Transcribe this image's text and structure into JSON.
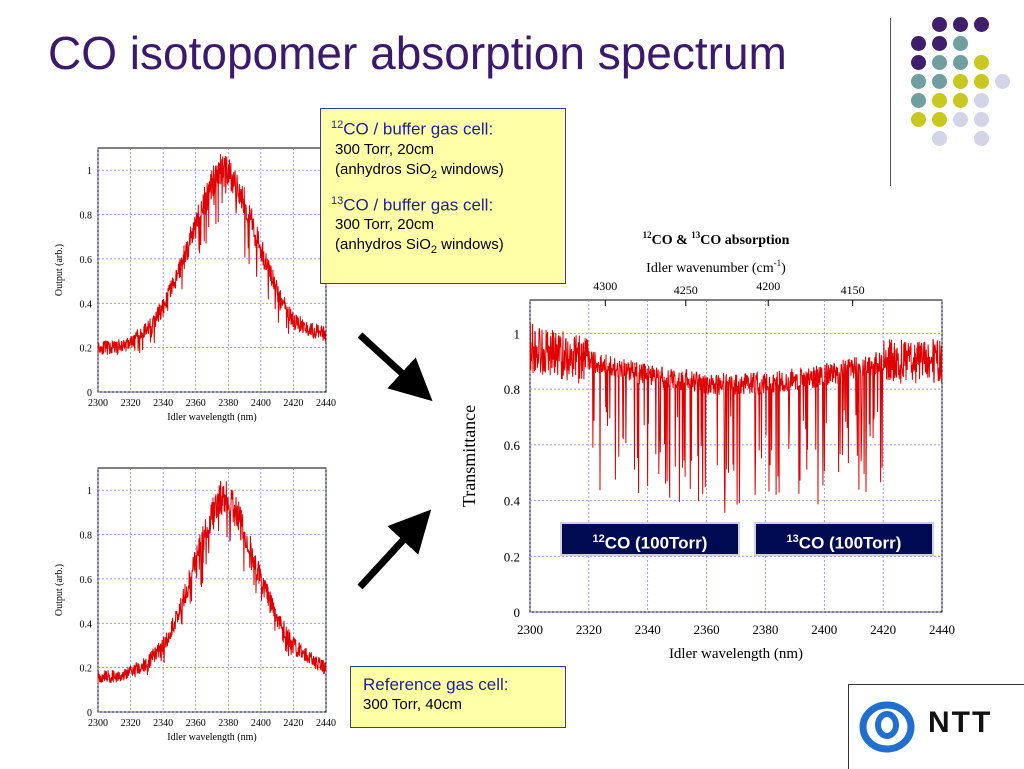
{
  "slide": {
    "title": "CO isotopomer absorption spectrum",
    "logo_text": "NTT",
    "logo_icon": "ntt-swirl-logo"
  },
  "callouts": {
    "top": {
      "line1_sup": "12",
      "line1": "CO / buffer gas cell:",
      "line2": "300 Torr, 20cm",
      "line3_a": "(anhydros SiO",
      "line3_sub": "2",
      "line3_b": " windows)",
      "line4_sup": "13",
      "line4": "CO / buffer gas cell:",
      "line5": "300 Torr, 20cm",
      "line6_a": "(anhydros SiO",
      "line6_sub": "2",
      "line6_b": " windows)"
    },
    "bottom": {
      "line1": "Reference gas cell:",
      "line2": "300 Torr, 40cm"
    }
  },
  "badges": {
    "b1_sup": "12",
    "b1": "CO (100Torr)",
    "b2_sup": "13",
    "b2": "CO (100Torr)"
  },
  "colors": {
    "title": "#3b1a6e",
    "data_line": "#e00000",
    "dot_purple": "#3f1f6b",
    "dot_teal": "#6f9f9f",
    "dot_yellow": "#c8c820",
    "dot_lavender": "#d4d4e8"
  },
  "chart_data": [
    {
      "type": "line",
      "id": "top-left",
      "title": "",
      "xlabel": "Idler wavelength (nm)",
      "ylabel": "Output (arb.)",
      "xlim": [
        2300,
        2440
      ],
      "ylim": [
        0,
        1.1
      ],
      "x_ticks": [
        2300,
        2320,
        2340,
        2360,
        2380,
        2400,
        2420,
        2440
      ],
      "y_ticks": [
        0,
        0.2,
        0.4,
        0.6,
        0.8,
        1
      ],
      "y_tick_labels": [
        "0",
        "0.2",
        "0.4",
        "0.6",
        "0.8",
        "1"
      ],
      "grid": true,
      "envelope_x": [
        2300,
        2310,
        2320,
        2330,
        2340,
        2350,
        2360,
        2370,
        2375,
        2380,
        2385,
        2390,
        2400,
        2410,
        2420,
        2430,
        2440
      ],
      "envelope_y": [
        0.2,
        0.2,
        0.22,
        0.28,
        0.38,
        0.55,
        0.75,
        0.95,
        1.0,
        0.98,
        0.92,
        0.85,
        0.65,
        0.45,
        0.32,
        0.28,
        0.26
      ]
    },
    {
      "type": "line",
      "id": "bottom-left",
      "title": "",
      "xlabel": "Idler wavelength (nm)",
      "ylabel": "Output (arb.)",
      "xlim": [
        2300,
        2440
      ],
      "ylim": [
        0,
        1.1
      ],
      "x_ticks": [
        2300,
        2320,
        2340,
        2360,
        2380,
        2400,
        2420,
        2440
      ],
      "y_ticks": [
        0,
        0.2,
        0.4,
        0.6,
        0.8,
        1
      ],
      "y_tick_labels": [
        "0",
        "0.2",
        "0.4",
        "0.6",
        "0.8",
        "1"
      ],
      "grid": true,
      "envelope_x": [
        2300,
        2310,
        2320,
        2330,
        2340,
        2350,
        2360,
        2370,
        2375,
        2380,
        2385,
        2390,
        2400,
        2410,
        2420,
        2430,
        2440
      ],
      "envelope_y": [
        0.16,
        0.16,
        0.18,
        0.22,
        0.3,
        0.45,
        0.68,
        0.9,
        0.97,
        0.96,
        0.9,
        0.82,
        0.6,
        0.42,
        0.3,
        0.24,
        0.2
      ]
    },
    {
      "type": "line",
      "id": "main",
      "title_sup1": "12",
      "title_mid": "CO & ",
      "title_sup2": "13",
      "title_end": "CO absorption",
      "xlabel": "Idler wavelength (nm)",
      "ylabel": "Transmittance",
      "top_axis_label": "Idler wavenumber (cm",
      "top_axis_sup": "-1",
      "top_axis_end": ")",
      "xlim": [
        2300,
        2440
      ],
      "ylim": [
        0,
        1.12
      ],
      "x_ticks": [
        2300,
        2320,
        2340,
        2360,
        2380,
        2400,
        2420,
        2440
      ],
      "y_ticks": [
        0,
        0.2,
        0.4,
        0.6,
        0.8,
        1
      ],
      "y_tick_labels": [
        "0",
        "0.2",
        "0.4",
        "0.6",
        "0.8",
        "1"
      ],
      "top_ticks_wavenumber": [
        4300,
        4250,
        4200,
        4150
      ],
      "grid": true,
      "baseline_x": [
        2300,
        2320,
        2340,
        2360,
        2380,
        2400,
        2420,
        2440
      ],
      "baseline_y": [
        0.95,
        0.9,
        0.85,
        0.82,
        0.82,
        0.85,
        0.9,
        0.9
      ]
    }
  ]
}
